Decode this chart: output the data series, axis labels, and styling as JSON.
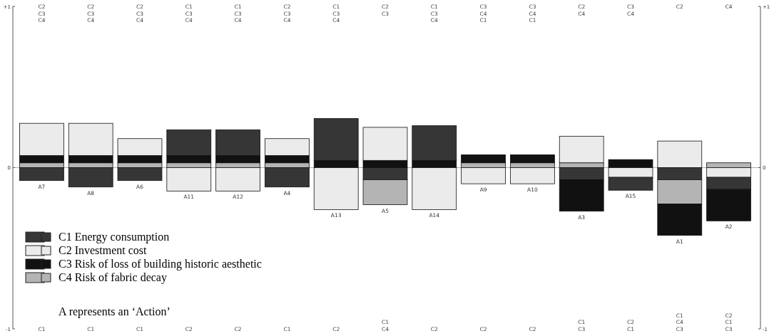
{
  "chart_data": {
    "type": "bar",
    "stacked": true,
    "categories": [
      "A7",
      "A8",
      "A6",
      "A11",
      "A12",
      "A4",
      "A13",
      "A5",
      "A14",
      "A9",
      "A10",
      "A3",
      "A15",
      "A1",
      "A2"
    ],
    "series": [
      {
        "name": "C1 Energy consumption",
        "color": "#363636",
        "values": [
          -0.08,
          -0.12,
          -0.08,
          0.16,
          0.16,
          -0.12,
          0.26,
          -0.075,
          0.215,
          null,
          null,
          -0.075,
          -0.08,
          -0.075,
          -0.075
        ]
      },
      {
        "name": "C2 Investment cost",
        "color": "#ebebeb",
        "values": [
          0.2,
          0.2,
          0.105,
          -0.145,
          -0.145,
          0.105,
          -0.26,
          0.205,
          -0.26,
          -0.1,
          -0.1,
          0.165,
          -0.06,
          0.165,
          -0.06
        ]
      },
      {
        "name": "C3 Risk of loss of building historic aesthetic",
        "color": "#111111",
        "values": [
          0.045,
          0.045,
          0.045,
          0.045,
          0.045,
          0.045,
          0.045,
          0.045,
          0.045,
          0.05,
          0.05,
          -0.195,
          0.05,
          -0.195,
          -0.195
        ]
      },
      {
        "name": "C4 Risk of fabric decay",
        "color": "#b4b4b4",
        "values": [
          0.03,
          0.03,
          0.03,
          0.03,
          0.03,
          0.03,
          null,
          -0.155,
          null,
          0.03,
          0.03,
          0.03,
          null,
          -0.15,
          0.03
        ]
      }
    ],
    "ylim": [
      -1,
      1
    ],
    "yticks": [
      {
        "value": 1,
        "label": "+1"
      },
      0,
      -1
    ],
    "y2lim": [
      -1,
      1
    ],
    "y2ticks": [
      {
        "value": 1,
        "label": "+1"
      },
      0,
      -1
    ],
    "legend": "bottom left",
    "annotations": [
      "C2\nC3\nC4",
      "C2\nC3\nC4",
      "C2\nC3\nC4",
      "C1\nC3\nC4",
      "C1\nC3\nC4",
      "C2\nC3\nC4",
      "C1\nC3\nC4",
      "C2\nC3",
      "C1\nC3\nC4",
      "C3\nC4\nC1",
      "C3\nC4\nC1",
      "C2\nC4",
      "C3\nC4",
      "C2",
      "C4",
      "C1",
      "C1",
      "C1",
      "C2",
      "C2",
      "C1",
      "C2",
      "C1\nC4",
      "C2",
      "C2",
      "C2",
      "C1\nC3",
      "C2\nC1",
      "C1\nC4\nC3",
      "C2\nC1\nC3",
      "A represents an ‘Action’"
    ]
  }
}
